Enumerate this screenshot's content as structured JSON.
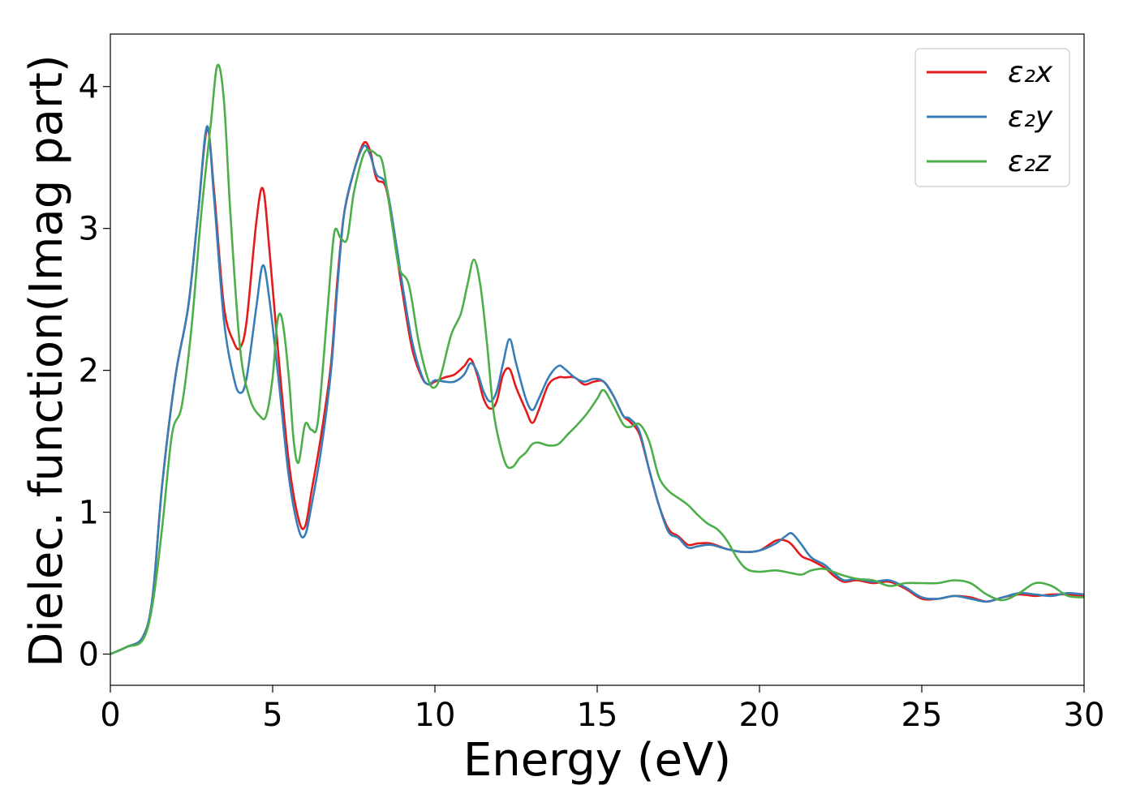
{
  "chart_data": {
    "type": "line",
    "title": "",
    "xlabel": "Energy (eV)",
    "ylabel": "Dielec. function(Imag part)",
    "xlim": [
      0,
      30
    ],
    "ylim": [
      -0.22,
      4.37
    ],
    "xticks": [
      0,
      5,
      10,
      15,
      20,
      25,
      30
    ],
    "xtick_labels": [
      "0",
      "5",
      "10",
      "15",
      "20",
      "25",
      "30"
    ],
    "yticks": [
      0,
      1,
      2,
      3,
      4
    ],
    "ytick_labels": [
      "0",
      "1",
      "2",
      "3",
      "4"
    ],
    "grid": false,
    "legend_position": "top-right",
    "series": [
      {
        "name": "ε₂x",
        "color": "#e41a1c",
        "x": [
          0,
          0.5,
          1,
          1.3,
          1.6,
          2,
          2.4,
          2.7,
          2.98,
          3.2,
          3.5,
          3.8,
          4,
          4.2,
          4.5,
          4.7,
          4.9,
          5.2,
          5.5,
          5.8,
          6,
          6.2,
          6.5,
          6.8,
          7,
          7.2,
          7.5,
          7.8,
          8,
          8.2,
          8.5,
          8.8,
          9,
          9.3,
          9.6,
          9.8,
          10,
          10.3,
          10.6,
          10.9,
          11.1,
          11.3,
          11.5,
          11.7,
          11.9,
          12.1,
          12.3,
          12.5,
          12.8,
          13,
          13.2,
          13.5,
          13.8,
          14,
          14.3,
          14.6,
          14.9,
          15.2,
          15.5,
          15.8,
          16,
          16.3,
          16.6,
          16.9,
          17.2,
          17.5,
          17.8,
          18.1,
          18.5,
          19,
          19.5,
          20,
          20.5,
          20.8,
          21,
          21.3,
          21.6,
          22,
          22.3,
          22.6,
          23,
          23.5,
          24,
          24.5,
          25,
          25.5,
          26,
          26.5,
          27,
          27.5,
          28,
          28.5,
          29,
          29.5,
          30
        ],
        "values": [
          0,
          0.05,
          0.12,
          0.4,
          1.2,
          1.95,
          2.45,
          3.1,
          3.7,
          3.25,
          2.45,
          2.2,
          2.16,
          2.35,
          3.05,
          3.28,
          2.85,
          2.05,
          1.35,
          0.95,
          0.9,
          1.15,
          1.55,
          2.05,
          2.65,
          3.1,
          3.4,
          3.6,
          3.55,
          3.35,
          3.28,
          2.85,
          2.55,
          2.15,
          1.95,
          1.9,
          1.92,
          1.95,
          1.97,
          2.03,
          2.08,
          1.97,
          1.8,
          1.73,
          1.78,
          1.97,
          2.01,
          1.88,
          1.72,
          1.63,
          1.72,
          1.9,
          1.95,
          1.95,
          1.95,
          1.9,
          1.92,
          1.92,
          1.82,
          1.68,
          1.64,
          1.55,
          1.3,
          1.05,
          0.88,
          0.83,
          0.77,
          0.78,
          0.78,
          0.74,
          0.72,
          0.73,
          0.8,
          0.8,
          0.77,
          0.69,
          0.66,
          0.61,
          0.55,
          0.51,
          0.52,
          0.5,
          0.51,
          0.46,
          0.39,
          0.39,
          0.41,
          0.4,
          0.37,
          0.4,
          0.42,
          0.41,
          0.42,
          0.42,
          0.41
        ]
      },
      {
        "name": "ε₂y",
        "color": "#377eb8",
        "x": [
          0,
          0.5,
          1,
          1.3,
          1.6,
          2,
          2.4,
          2.7,
          2.98,
          3.2,
          3.5,
          3.8,
          4,
          4.2,
          4.5,
          4.7,
          4.9,
          5.2,
          5.5,
          5.8,
          6,
          6.2,
          6.5,
          6.8,
          7,
          7.2,
          7.5,
          7.8,
          8,
          8.2,
          8.5,
          8.8,
          9,
          9.3,
          9.6,
          9.8,
          10,
          10.3,
          10.6,
          10.9,
          11.1,
          11.3,
          11.5,
          11.7,
          11.9,
          12.1,
          12.3,
          12.5,
          12.8,
          13,
          13.2,
          13.5,
          13.8,
          14,
          14.3,
          14.6,
          14.9,
          15.2,
          15.5,
          15.8,
          16,
          16.3,
          16.6,
          16.9,
          17.2,
          17.5,
          17.8,
          18.1,
          18.5,
          19,
          19.5,
          20,
          20.5,
          20.8,
          21,
          21.3,
          21.6,
          22,
          22.3,
          22.6,
          23,
          23.5,
          24,
          24.5,
          25,
          25.5,
          26,
          26.5,
          27,
          27.5,
          28,
          28.5,
          29,
          29.5,
          30
        ],
        "values": [
          0,
          0.05,
          0.12,
          0.4,
          1.2,
          1.95,
          2.45,
          3.1,
          3.72,
          3.2,
          2.35,
          1.95,
          1.84,
          1.95,
          2.45,
          2.74,
          2.5,
          1.9,
          1.25,
          0.88,
          0.84,
          1.05,
          1.45,
          2.0,
          2.6,
          3.1,
          3.4,
          3.58,
          3.52,
          3.38,
          3.3,
          2.9,
          2.6,
          2.2,
          1.96,
          1.9,
          1.93,
          1.92,
          1.92,
          1.97,
          2.05,
          1.99,
          1.85,
          1.78,
          1.85,
          2.05,
          2.22,
          2.05,
          1.8,
          1.72,
          1.8,
          1.95,
          2.03,
          2.01,
          1.95,
          1.92,
          1.94,
          1.92,
          1.82,
          1.68,
          1.66,
          1.57,
          1.3,
          1.05,
          0.86,
          0.82,
          0.75,
          0.76,
          0.77,
          0.74,
          0.72,
          0.73,
          0.78,
          0.83,
          0.85,
          0.77,
          0.68,
          0.63,
          0.57,
          0.52,
          0.53,
          0.51,
          0.52,
          0.47,
          0.4,
          0.39,
          0.41,
          0.39,
          0.37,
          0.4,
          0.43,
          0.42,
          0.41,
          0.43,
          0.42
        ]
      },
      {
        "name": "ε₂z",
        "color": "#4daf4a",
        "x": [
          0,
          0.5,
          1,
          1.3,
          1.6,
          1.9,
          2.2,
          2.5,
          2.8,
          3.1,
          3.3,
          3.5,
          3.7,
          4,
          4.3,
          4.6,
          4.8,
          5,
          5.15,
          5.3,
          5.5,
          5.65,
          5.8,
          6,
          6.2,
          6.4,
          6.7,
          6.9,
          7.1,
          7.3,
          7.5,
          7.8,
          8,
          8.2,
          8.4,
          8.7,
          8.9,
          9.2,
          9.5,
          9.8,
          10,
          10.2,
          10.5,
          10.8,
          11,
          11.2,
          11.4,
          11.6,
          11.8,
          12,
          12.2,
          12.4,
          12.6,
          12.8,
          13,
          13.2,
          13.5,
          13.8,
          14.1,
          14.4,
          14.7,
          15,
          15.2,
          15.5,
          15.8,
          16,
          16.3,
          16.6,
          16.9,
          17.2,
          17.5,
          17.8,
          18.1,
          18.4,
          18.7,
          19,
          19.3,
          19.6,
          20,
          20.5,
          21,
          21.3,
          21.6,
          22,
          22.5,
          23,
          23.5,
          24,
          24.5,
          25,
          25.5,
          26,
          26.5,
          27,
          27.5,
          28,
          28.5,
          29,
          29.5,
          30
        ],
        "values": [
          0,
          0.05,
          0.1,
          0.35,
          0.9,
          1.55,
          1.75,
          2.3,
          3.1,
          3.75,
          4.15,
          3.9,
          3.1,
          2.15,
          1.8,
          1.68,
          1.68,
          1.95,
          2.35,
          2.35,
          1.95,
          1.5,
          1.35,
          1.62,
          1.58,
          1.65,
          2.45,
          2.97,
          2.93,
          2.93,
          3.25,
          3.52,
          3.55,
          3.52,
          3.45,
          3.0,
          2.72,
          2.6,
          2.2,
          1.93,
          1.88,
          1.98,
          2.25,
          2.4,
          2.6,
          2.78,
          2.6,
          2.2,
          1.72,
          1.48,
          1.33,
          1.32,
          1.38,
          1.42,
          1.48,
          1.49,
          1.47,
          1.48,
          1.55,
          1.62,
          1.7,
          1.8,
          1.86,
          1.75,
          1.62,
          1.6,
          1.62,
          1.5,
          1.25,
          1.15,
          1.1,
          1.05,
          0.98,
          0.92,
          0.88,
          0.8,
          0.68,
          0.6,
          0.58,
          0.59,
          0.57,
          0.56,
          0.59,
          0.6,
          0.56,
          0.53,
          0.52,
          0.48,
          0.5,
          0.5,
          0.5,
          0.52,
          0.5,
          0.42,
          0.38,
          0.43,
          0.5,
          0.48,
          0.41,
          0.4
        ]
      }
    ]
  }
}
